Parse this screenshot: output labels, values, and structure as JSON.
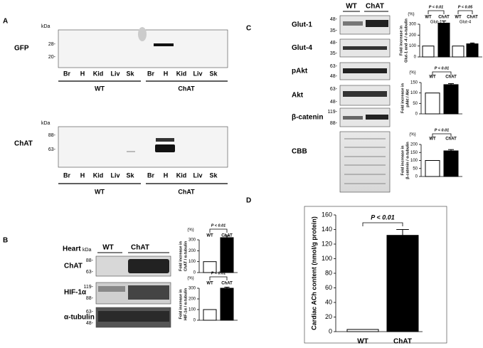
{
  "panel_a": {
    "label": "A",
    "kda": "kDa",
    "blots": [
      {
        "name": "GFP",
        "markers": [
          "28-",
          "20-"
        ]
      },
      {
        "name": "ChAT",
        "markers": [
          "88-",
          "63-"
        ]
      }
    ],
    "lanes": [
      "Br",
      "H",
      "Kid",
      "Liv",
      "Sk"
    ],
    "groups": [
      "WT",
      "ChAT"
    ]
  },
  "panel_b": {
    "label": "B",
    "tissue": "Heart",
    "kda": "kDa",
    "groups": [
      "WT",
      "ChAT"
    ],
    "blots": [
      {
        "name": "ChAT",
        "markers": [
          "88-",
          "63-"
        ]
      },
      {
        "name": "HIF-1α",
        "markers": [
          "119-",
          "88-"
        ]
      },
      {
        "name": "α-tubulin",
        "markers": [
          "63-",
          "48-"
        ]
      }
    ]
  },
  "panel_c": {
    "label": "C",
    "groups": [
      "WT",
      "ChAT"
    ],
    "blots": [
      {
        "name": "Glut-1",
        "markers": [
          "48-",
          "35-"
        ]
      },
      {
        "name": "Glut-4",
        "markers": [
          "48-",
          "35-"
        ]
      },
      {
        "name": "pAkt",
        "markers": [
          "63-",
          "48-"
        ]
      },
      {
        "name": "Akt",
        "markers": [
          "63-",
          "48-"
        ]
      },
      {
        "name": "β-catenin",
        "markers": [
          "119-",
          "88-"
        ]
      },
      {
        "name": "CBB",
        "markers": []
      }
    ]
  },
  "panel_d": {
    "label": "D"
  },
  "chart_data": [
    {
      "type": "bar",
      "unit": "(%)",
      "ylabel": [
        "Fold increase in",
        "ChAT / α-tubulin"
      ],
      "categories": [
        "WT",
        "ChAT"
      ],
      "values": [
        100,
        320
      ],
      "errors": [
        null,
        15
      ],
      "colors": [
        "#ffffff",
        "#000000"
      ],
      "ylim": [
        0,
        300
      ],
      "yticks": [
        0,
        100,
        200,
        300
      ],
      "pvalue": "P < 0.01"
    },
    {
      "type": "bar",
      "unit": "(%)",
      "ylabel": [
        "Fold increase in",
        "HIF-1α / α-tubulin"
      ],
      "categories": [
        "WT",
        "ChAT"
      ],
      "values": [
        100,
        300
      ],
      "errors": [
        null,
        10
      ],
      "colors": [
        "#ffffff",
        "#000000"
      ],
      "ylim": [
        0,
        300
      ],
      "yticks": [
        0,
        100,
        200,
        300
      ],
      "pvalue": "P < 0.01"
    },
    {
      "type": "grouped_bar",
      "unit": "(%)",
      "ylabel": [
        "Fold increase in",
        "Glut-1 and -4 / α-tubulin"
      ],
      "colors": [
        "#ffffff",
        "#000000"
      ],
      "ylim": [
        0,
        300
      ],
      "yticks": [
        0,
        100,
        200,
        300
      ],
      "groups": [
        {
          "name": "Glut-1",
          "categories": [
            "WT",
            "ChAT"
          ],
          "values": [
            100,
            310
          ],
          "errors": [
            null,
            20
          ],
          "pvalue": "P < 0.01"
        },
        {
          "name": "Glut-4",
          "categories": [
            "WT",
            "ChAT"
          ],
          "values": [
            100,
            120
          ],
          "errors": [
            null,
            8
          ],
          "pvalue": "P < 0.05"
        }
      ]
    },
    {
      "type": "bar",
      "unit": "(%)",
      "ylabel": [
        "Fold increase in",
        "pAkt / Akt"
      ],
      "categories": [
        "WT",
        "ChAT"
      ],
      "values": [
        100,
        140
      ],
      "errors": [
        null,
        5
      ],
      "colors": [
        "#ffffff",
        "#000000"
      ],
      "ylim": [
        0,
        150
      ],
      "yticks": [
        0,
        50,
        100,
        150
      ],
      "pvalue": "P < 0.01"
    },
    {
      "type": "bar",
      "unit": "(%)",
      "ylabel": [
        "Fold increase in",
        "β-catenin / α-tubulin"
      ],
      "categories": [
        "WT",
        "ChAT"
      ],
      "values": [
        100,
        160
      ],
      "errors": [
        null,
        8
      ],
      "colors": [
        "#ffffff",
        "#000000"
      ],
      "ylim": [
        0,
        200
      ],
      "yticks": [
        0,
        50,
        100,
        150,
        200
      ],
      "pvalue": "P < 0.01"
    },
    {
      "type": "bar",
      "ylabel": [
        "Cardiac ACh content (nmol/g protein)"
      ],
      "categories": [
        "WT",
        "ChAT"
      ],
      "values": [
        3,
        132
      ],
      "errors": [
        null,
        8
      ],
      "colors": [
        "#ffffff",
        "#000000"
      ],
      "ylim": [
        0,
        160
      ],
      "yticks": [
        0,
        20,
        40,
        60,
        80,
        100,
        120,
        140,
        160
      ],
      "pvalue": "P < 0.01"
    }
  ]
}
